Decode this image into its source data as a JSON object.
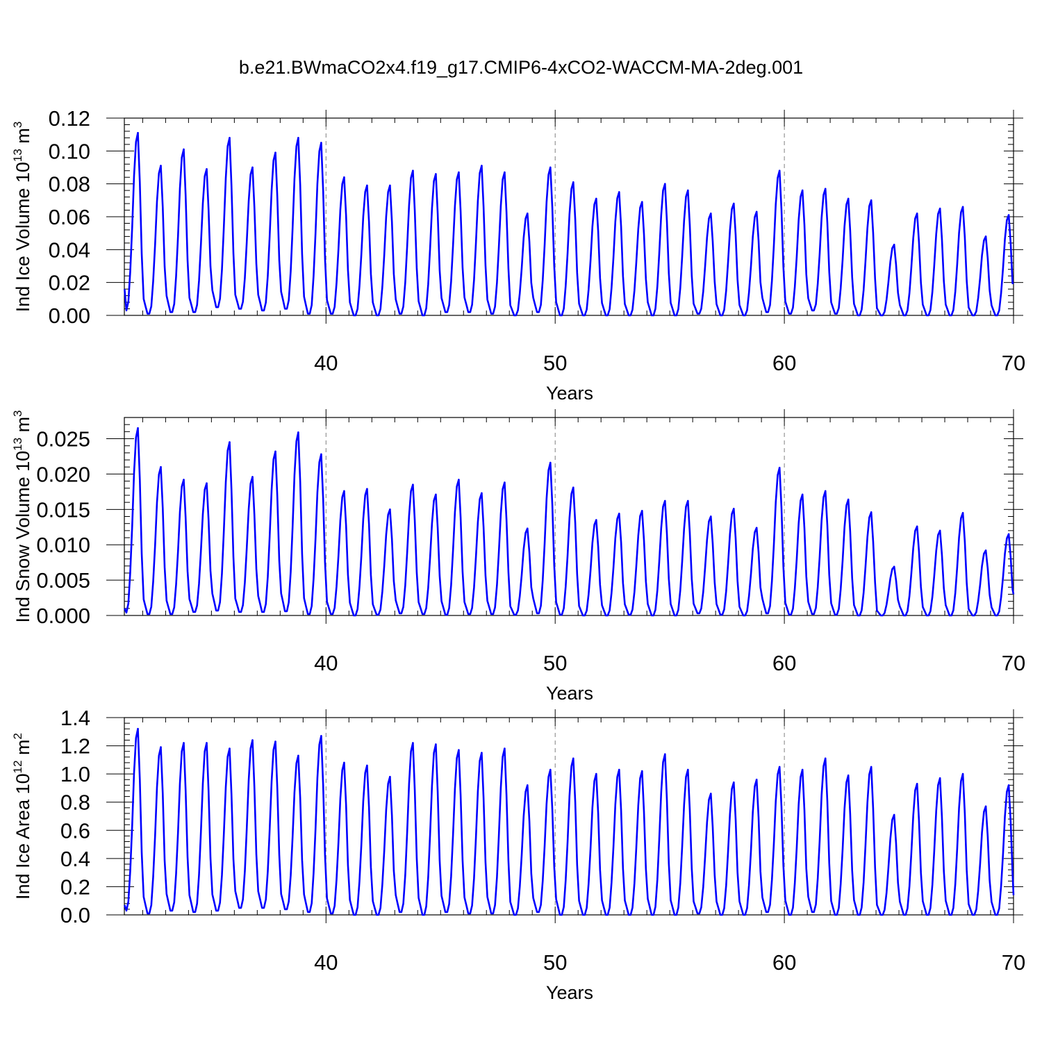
{
  "figure": {
    "title": "b.e21.BWmaCO2x4.f19_g17.CMIP6-4xCO2-WACCM-MA-2deg.001",
    "line_color": "#0000ff",
    "grid_color": "#7f7f7f"
  },
  "chart_data": [
    {
      "type": "line",
      "title": "b.e21.BWmaCO2x4.f19_g17.CMIP6-4xCO2-WACCM-MA-2deg.001",
      "ylabel": "Ind Ice Volume 10",
      "ylabel_exp": "13",
      "ylabel_unit": " m",
      "ylabel_unit_exp": "3",
      "xlabel": "Years",
      "xlim": [
        31.2,
        70.0
      ],
      "ylim": [
        0.0,
        0.12
      ],
      "xticks": [
        40,
        50,
        60,
        70
      ],
      "xtick_labels": [
        "40",
        "50",
        "60",
        "70"
      ],
      "yticks": [
        0.0,
        0.02,
        0.04,
        0.06,
        0.08,
        0.1,
        0.12
      ],
      "ytick_labels": [
        "0.00",
        "0.02",
        "0.04",
        "0.06",
        "0.08",
        "0.10",
        "0.12"
      ],
      "vgrid": [
        40,
        50,
        60
      ],
      "series_name": "ice-volume",
      "start_value": 0.016,
      "end_value": 0.02,
      "annual": {
        "years": [
          31,
          32,
          33,
          34,
          35,
          36,
          37,
          38,
          39,
          40,
          41,
          42,
          43,
          44,
          45,
          46,
          47,
          48,
          49,
          50,
          51,
          52,
          53,
          54,
          55,
          56,
          57,
          58,
          59,
          60,
          61,
          62,
          63,
          64,
          65,
          66,
          67,
          68,
          69
        ],
        "peaks": [
          0.111,
          0.091,
          0.101,
          0.089,
          0.108,
          0.09,
          0.099,
          0.108,
          0.105,
          0.084,
          0.079,
          0.079,
          0.088,
          0.086,
          0.087,
          0.091,
          0.087,
          0.062,
          0.09,
          0.081,
          0.071,
          0.075,
          0.069,
          0.08,
          0.076,
          0.062,
          0.068,
          0.063,
          0.088,
          0.076,
          0.077,
          0.071,
          0.07,
          0.043,
          0.062,
          0.065,
          0.066,
          0.048,
          0.061
        ],
        "minima": [
          0.003,
          0.001,
          0.002,
          0.002,
          0.005,
          0.004,
          0.003,
          0.004,
          0.001,
          0.001,
          0.0,
          0.0,
          0.001,
          0.0,
          0.002,
          0.002,
          0.001,
          0.0,
          0.002,
          0.0,
          0.0,
          0.0,
          0.0,
          0.0,
          0.0,
          0.001,
          0.0,
          0.0,
          0.002,
          0.001,
          0.003,
          0.001,
          0.0,
          0.0,
          0.0,
          0.0,
          0.0,
          0.0,
          0.0
        ]
      }
    },
    {
      "type": "line",
      "ylabel": "Ind Snow Volume 10",
      "ylabel_exp": "13",
      "ylabel_unit": " m",
      "ylabel_unit_exp": "3",
      "xlabel": "Years",
      "xlim": [
        31.2,
        70.0
      ],
      "ylim": [
        0.0,
        0.028
      ],
      "xticks": [
        40,
        50,
        60,
        70
      ],
      "xtick_labels": [
        "40",
        "50",
        "60",
        "70"
      ],
      "yticks": [
        0.0,
        0.005,
        0.01,
        0.015,
        0.02,
        0.025
      ],
      "ytick_labels": [
        "0.000",
        "0.005",
        "0.010",
        "0.015",
        "0.020",
        "0.025"
      ],
      "vgrid": [
        40,
        50,
        60
      ],
      "series_name": "snow-volume",
      "start_value": 0.001,
      "end_value": 0.003,
      "annual": {
        "years": [
          31,
          32,
          33,
          34,
          35,
          36,
          37,
          38,
          39,
          40,
          41,
          42,
          43,
          44,
          45,
          46,
          47,
          48,
          49,
          50,
          51,
          52,
          53,
          54,
          55,
          56,
          57,
          58,
          59,
          60,
          61,
          62,
          63,
          64,
          65,
          66,
          67,
          68,
          69
        ],
        "peaks": [
          0.0265,
          0.021,
          0.0192,
          0.0187,
          0.0245,
          0.0196,
          0.0232,
          0.0259,
          0.0228,
          0.0176,
          0.0179,
          0.015,
          0.0185,
          0.0171,
          0.0192,
          0.0173,
          0.0188,
          0.0123,
          0.0216,
          0.0181,
          0.0135,
          0.0144,
          0.0148,
          0.0162,
          0.0162,
          0.014,
          0.0151,
          0.0124,
          0.0209,
          0.0171,
          0.0176,
          0.0164,
          0.0146,
          0.0069,
          0.0126,
          0.012,
          0.0145,
          0.0092,
          0.0115
        ],
        "minima": [
          0.0004,
          0.0002,
          0.0002,
          0.0005,
          0.0007,
          0.0005,
          0.0005,
          0.0006,
          0.0002,
          0.0002,
          0.0,
          0.0001,
          0.0003,
          0.0002,
          0.0001,
          0.0002,
          0.0002,
          0.0001,
          0.0003,
          0.0001,
          0.0,
          0.0,
          0.0001,
          0.0,
          0.0,
          0.0003,
          0.0001,
          0.0,
          0.0003,
          0.0001,
          0.0002,
          0.0001,
          0.0,
          0.0,
          0.0,
          0.0,
          0.0,
          0.0,
          0.0
        ]
      }
    },
    {
      "type": "line",
      "ylabel": "Ind Ice Area 10",
      "ylabel_exp": "12",
      "ylabel_unit": " m",
      "ylabel_unit_exp": "2",
      "xlabel": "Years",
      "xlim": [
        31.2,
        70.0
      ],
      "ylim": [
        0.0,
        1.4
      ],
      "xticks": [
        40,
        50,
        60,
        70
      ],
      "xtick_labels": [
        "40",
        "50",
        "60",
        "70"
      ],
      "yticks": [
        0.0,
        0.2,
        0.4,
        0.6,
        0.8,
        1.0,
        1.2,
        1.4
      ],
      "ytick_labels": [
        "0.0",
        "0.2",
        "0.4",
        "0.6",
        "0.8",
        "1.0",
        "1.2",
        "1.4"
      ],
      "vgrid": [
        40,
        50,
        60
      ],
      "series_name": "ice-area",
      "start_value": 0.07,
      "end_value": 0.14,
      "annual": {
        "years": [
          31,
          32,
          33,
          34,
          35,
          36,
          37,
          38,
          39,
          40,
          41,
          42,
          43,
          44,
          45,
          46,
          47,
          48,
          49,
          50,
          51,
          52,
          53,
          54,
          55,
          56,
          57,
          58,
          59,
          60,
          61,
          62,
          63,
          64,
          65,
          66,
          67,
          68,
          69
        ],
        "peaks": [
          1.32,
          1.19,
          1.22,
          1.22,
          1.18,
          1.24,
          1.23,
          1.13,
          1.27,
          1.08,
          1.06,
          0.98,
          1.22,
          1.21,
          1.17,
          1.15,
          1.18,
          0.92,
          1.03,
          1.11,
          1.0,
          1.03,
          1.02,
          1.14,
          1.03,
          0.86,
          0.94,
          0.96,
          1.05,
          1.03,
          1.11,
          0.99,
          1.05,
          0.71,
          0.93,
          0.97,
          1.0,
          0.77,
          0.92
        ],
        "minima": [
          0.03,
          0.01,
          0.03,
          0.02,
          0.03,
          0.05,
          0.05,
          0.04,
          0.02,
          0.01,
          0.0,
          0.0,
          0.02,
          0.0,
          0.02,
          0.01,
          0.01,
          0.0,
          0.02,
          0.0,
          0.0,
          0.0,
          0.0,
          0.0,
          0.0,
          0.01,
          0.0,
          0.0,
          0.02,
          0.0,
          0.02,
          0.0,
          0.0,
          0.0,
          0.0,
          0.0,
          0.0,
          0.0,
          0.0
        ]
      }
    }
  ]
}
